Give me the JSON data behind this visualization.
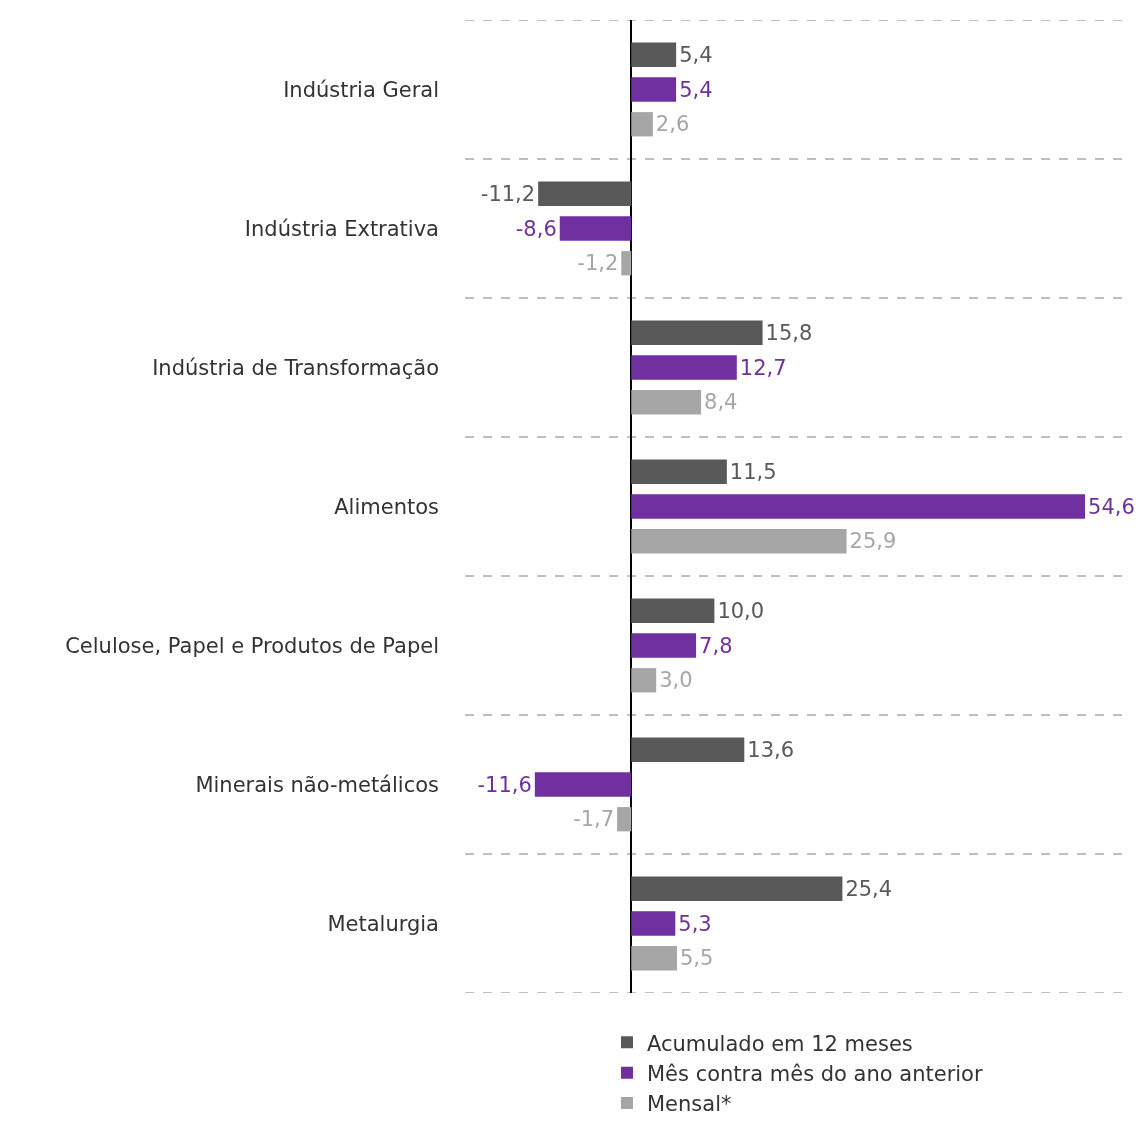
{
  "chart_data": {
    "type": "bar",
    "orientation": "horizontal",
    "categories": [
      "Indústria Geral",
      "Indústria Extrativa",
      "Indústria de Transformação",
      "Alimentos",
      "Celulose, Papel e Produtos de Papel",
      "Minerais não-metálicos",
      "Metalurgia"
    ],
    "series": [
      {
        "name": "Acumulado em 12 meses",
        "color": "#595959",
        "values": [
          5.4,
          -11.2,
          15.8,
          11.5,
          10.0,
          13.6,
          25.4
        ],
        "value_labels": [
          "5,4",
          "-11,2",
          "15,8",
          "11,5",
          "10,0",
          "13,6",
          "25,4"
        ]
      },
      {
        "name": "Mês contra mês do ano anterior",
        "color": "#7030a0",
        "values": [
          5.4,
          -8.6,
          12.7,
          54.6,
          7.8,
          -11.6,
          5.3
        ],
        "value_labels": [
          "5,4",
          "-8,6",
          "12,7",
          "54,6",
          "7,8",
          "-11,6",
          "5,3"
        ]
      },
      {
        "name": "Mensal*",
        "color": "#a6a6a6",
        "values": [
          2.6,
          -1.2,
          8.4,
          25.9,
          3.0,
          -1.7,
          5.5
        ],
        "value_labels": [
          "2,6",
          "-1,2",
          "8,4",
          "25,9",
          "3,0",
          "-1,7",
          "5,5"
        ]
      }
    ],
    "xlim": [
      -20,
      60
    ],
    "tick_labels": "y",
    "grid": "y",
    "legend": "bottom"
  }
}
